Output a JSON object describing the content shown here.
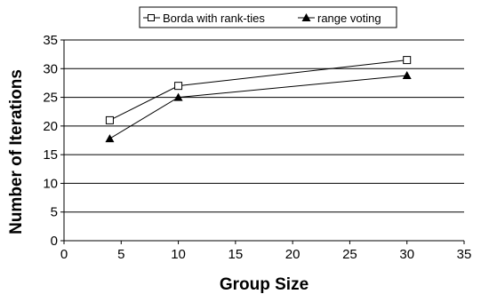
{
  "chart_data": {
    "type": "line",
    "title": "",
    "xlabel": "Group Size",
    "ylabel": "Number of Iterations",
    "xlim": [
      0,
      35
    ],
    "ylim": [
      0,
      35
    ],
    "x_ticks": [
      0,
      5,
      10,
      15,
      20,
      25,
      30,
      35
    ],
    "y_ticks": [
      0,
      5,
      10,
      15,
      20,
      25,
      30,
      35
    ],
    "grid": "horizontal",
    "legend_position": "top",
    "series": [
      {
        "name": "Borda with rank-ties",
        "marker": "open-square",
        "color": "#000000",
        "x": [
          4,
          10,
          30
        ],
        "y": [
          21,
          27,
          31.5
        ]
      },
      {
        "name": "range voting",
        "marker": "filled-triangle",
        "color": "#000000",
        "x": [
          4,
          10,
          30
        ],
        "y": [
          17.8,
          25,
          28.8
        ]
      }
    ]
  }
}
